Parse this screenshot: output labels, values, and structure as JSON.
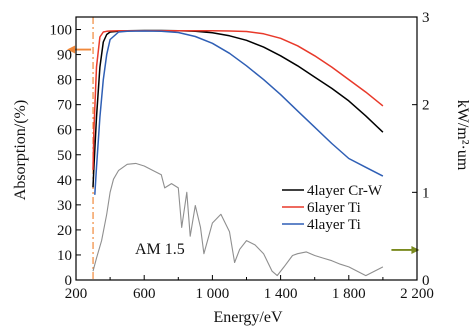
{
  "chart_data": {
    "type": "line",
    "xlabel": "Energy/eV",
    "ylabel": "Absorption/(%)",
    "y2label": "kW/m²·um",
    "xlim": [
      200,
      2200
    ],
    "ylim": [
      0,
      105
    ],
    "y2lim": [
      0,
      3
    ],
    "x_ticks": [
      200,
      600,
      1000,
      1400,
      1800,
      2200
    ],
    "x_tick_labels": [
      "200",
      "600",
      "1 000",
      "1 400",
      "1 800",
      "2 200"
    ],
    "y_ticks": [
      0,
      10,
      20,
      30,
      40,
      50,
      60,
      70,
      80,
      90,
      100
    ],
    "y_tick_labels": [
      "0",
      "10",
      "20",
      "30",
      "40",
      "50",
      "60",
      "70",
      "80",
      "90",
      "100"
    ],
    "y2_ticks": [
      0,
      1,
      2,
      3
    ],
    "y2_tick_labels": [
      "0",
      "1",
      "2",
      "3"
    ],
    "grid": false,
    "legend_position": "right",
    "series": [
      {
        "name": "4layer Cr-W",
        "color": "#000000",
        "axis": "left",
        "x": [
          300,
          305,
          320,
          340,
          360,
          380,
          400,
          450,
          500,
          600,
          700,
          800,
          900,
          1000,
          1100,
          1200,
          1300,
          1400,
          1500,
          1600,
          1700,
          1800,
          1900,
          2000
        ],
        "y": [
          37,
          45,
          65,
          85,
          95,
          98,
          99,
          99.3,
          99.5,
          99.6,
          99.6,
          99.5,
          99.3,
          98.7,
          97.5,
          95.7,
          93,
          89.5,
          85.5,
          81,
          76.5,
          71.5,
          65.5,
          59
        ]
      },
      {
        "name": "6layer Ti",
        "color": "#e8392a",
        "axis": "left",
        "x": [
          300,
          305,
          320,
          340,
          360,
          380,
          400,
          450,
          500,
          600,
          700,
          800,
          900,
          1000,
          1100,
          1200,
          1300,
          1400,
          1500,
          1600,
          1700,
          1800,
          1900,
          2000
        ],
        "y": [
          44,
          60,
          85,
          97,
          99,
          99.3,
          99.4,
          99.5,
          99.5,
          99.5,
          99.5,
          99.5,
          99.5,
          99.5,
          99.4,
          99.2,
          98.3,
          96.5,
          93.5,
          89.5,
          85,
          80,
          75,
          69.5
        ]
      },
      {
        "name": "4layer Ti",
        "color": "#2f5fb5",
        "axis": "left",
        "x": [
          310,
          320,
          340,
          360,
          380,
          400,
          450,
          500,
          600,
          700,
          800,
          900,
          1000,
          1100,
          1200,
          1300,
          1400,
          1500,
          1600,
          1700,
          1800,
          1900,
          2000
        ],
        "y": [
          34,
          45,
          65,
          80,
          90,
          96,
          99,
          99.3,
          99.4,
          99.3,
          98.8,
          97.2,
          94.5,
          90.5,
          85.5,
          80,
          74,
          67.5,
          61,
          54.5,
          48.5,
          45,
          41.5
        ]
      },
      {
        "name": "AM 1.5",
        "color": "#8f8f8f",
        "axis": "right",
        "x": [
          300,
          320,
          350,
          380,
          400,
          420,
          450,
          500,
          550,
          600,
          650,
          700,
          720,
          760,
          800,
          820,
          850,
          870,
          900,
          930,
          950,
          1000,
          1050,
          1100,
          1130,
          1160,
          1200,
          1250,
          1300,
          1350,
          1380,
          1420,
          1470,
          1500,
          1550,
          1600,
          1650,
          1700,
          1750,
          1800,
          1850,
          1900,
          1950,
          2000
        ],
        "y": [
          0.1,
          0.25,
          0.45,
          0.75,
          1.0,
          1.15,
          1.25,
          1.32,
          1.33,
          1.3,
          1.25,
          1.2,
          1.05,
          1.1,
          1.05,
          0.6,
          1.0,
          0.5,
          0.85,
          0.6,
          0.3,
          0.65,
          0.75,
          0.55,
          0.2,
          0.35,
          0.45,
          0.4,
          0.3,
          0.1,
          0.05,
          0.15,
          0.28,
          0.3,
          0.32,
          0.28,
          0.25,
          0.22,
          0.18,
          0.15,
          0.1,
          0.05,
          0.1,
          0.15
        ]
      }
    ],
    "annotations": [
      "AM 1.5"
    ],
    "reference_line": {
      "x": 300,
      "color": "#f0883a",
      "style": "dash-dot"
    },
    "arrows": [
      {
        "direction": "left",
        "color": "#f0883a",
        "meaning": "left axis"
      },
      {
        "direction": "right",
        "color": "#7a8a1e",
        "meaning": "right axis"
      }
    ]
  }
}
